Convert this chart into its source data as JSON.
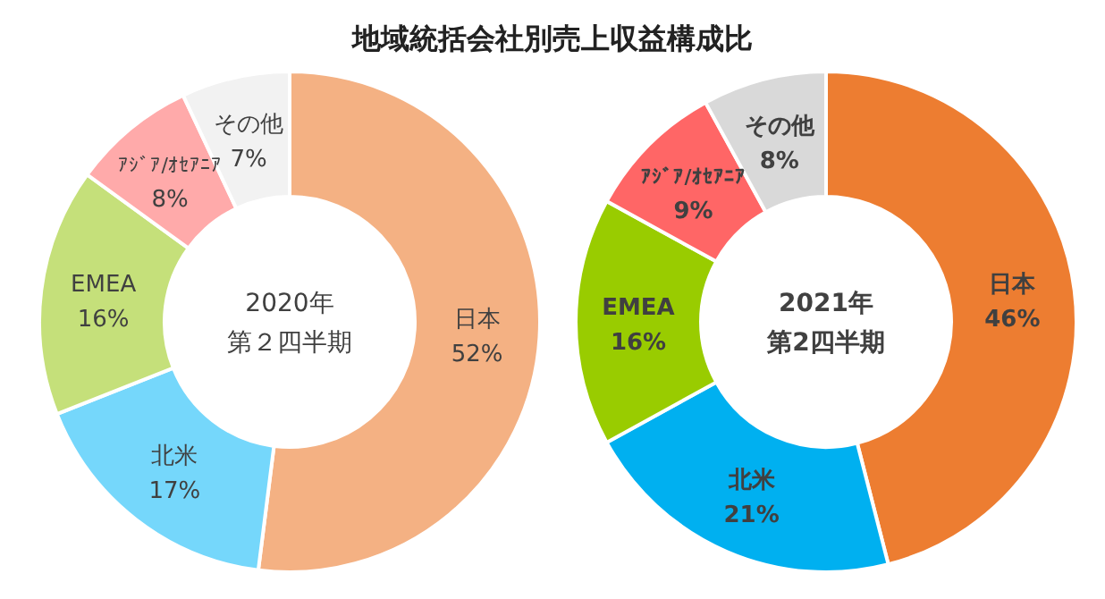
{
  "chart_data": [
    {
      "type": "donut",
      "title": "地域統括会社別売上収益構成比",
      "categories": [
        "日本",
        "北米",
        "EMEA",
        "ｱｼﾞｱ/ｵｾｱﾆｱ",
        "その他"
      ],
      "values": [
        52,
        17,
        16,
        8,
        7
      ],
      "value_labels": [
        "52%",
        "17%",
        "16%",
        "8%",
        "7%"
      ],
      "colors": [
        "#f4b183",
        "#75d7fb",
        "#c5e07a",
        "#ffaaaa",
        "#f2f2f2"
      ],
      "annotations": [
        "2020年",
        "第２四半期"
      ]
    },
    {
      "type": "donut",
      "categories": [
        "日本",
        "北米",
        "EMEA",
        "ｱｼﾞｱ/ｵｾｱﾆｱ",
        "その他"
      ],
      "values": [
        46,
        21,
        16,
        9,
        8
      ],
      "value_labels": [
        "46%",
        "21%",
        "16%",
        "9%",
        "8%"
      ],
      "colors": [
        "#ed7d31",
        "#00b0f0",
        "#99cc00",
        "#ff6666",
        "#d9d9d9"
      ],
      "annotations": [
        "2021年",
        "第2四半期"
      ]
    }
  ]
}
